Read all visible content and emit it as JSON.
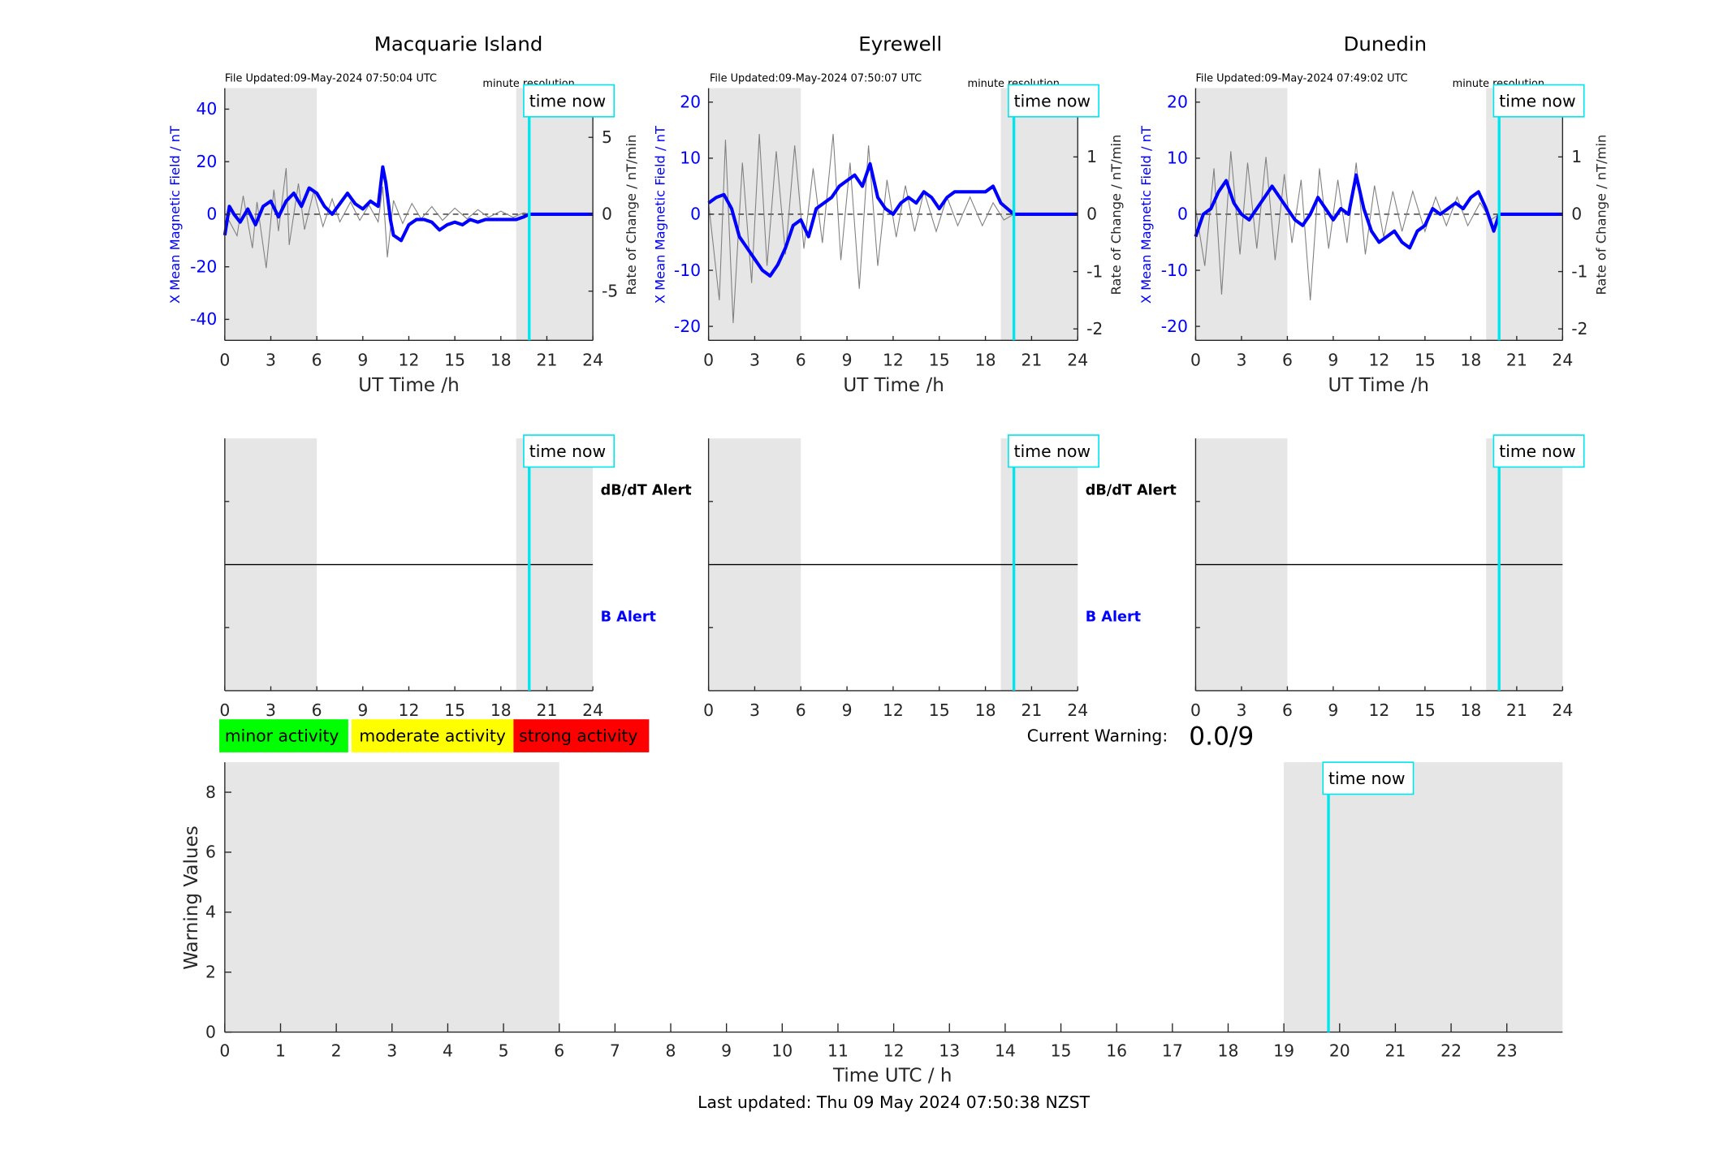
{
  "footer": {
    "last_updated": "Last updated: Thu 09 May 2024 07:50:38 NZST"
  },
  "common": {
    "x_label": "UT Time /h",
    "time_now_label": "time now",
    "y_label_left": "X Mean Magnetic Field / nT",
    "y_label_right": "Rate of Change / nT/min",
    "resolution_label": "minute resolution",
    "dbdt_alert_label": "dB/dT Alert",
    "b_alert_label": "B Alert",
    "current_warning_label": "Current Warning:",
    "current_warning_value": "0.0/9",
    "colors": {
      "field": "#0000ff",
      "rate": "#808080",
      "time_now": "#00e5ee",
      "shade": "#e6e6e6"
    }
  },
  "legend": [
    {
      "label": "minor activity",
      "color": "#00ff00"
    },
    {
      "label": "moderate activity",
      "color": "#ffff00"
    },
    {
      "label": "strong activity",
      "color": "#ff0000"
    }
  ],
  "chart_data": [
    {
      "type": "line",
      "title": "Macquarie Island",
      "file_updated": "File Updated:09-May-2024 07:50:04 UTC",
      "xlabel": "UT Time /h",
      "xlim": [
        0,
        24
      ],
      "xticks": [
        0,
        3,
        6,
        9,
        12,
        15,
        18,
        21,
        24
      ],
      "ylabel": "X Mean Magnetic Field / nT",
      "ylim": [
        -48,
        48
      ],
      "yticks": [
        -40,
        -20,
        0,
        20,
        40
      ],
      "y2label": "Rate of Change / nT/min",
      "y2lim": [
        -8.2,
        8.2
      ],
      "y2ticks": [
        -5,
        0,
        5
      ],
      "night_shading": [
        [
          0,
          6
        ],
        [
          19,
          24
        ]
      ],
      "time_now": 19.85,
      "series": [
        {
          "axis": "left",
          "points": [
            [
              0,
              -8
            ],
            [
              0.3,
              3
            ],
            [
              0.6,
              0
            ],
            [
              1,
              -3
            ],
            [
              1.5,
              2
            ],
            [
              2,
              -4
            ],
            [
              2.5,
              3
            ],
            [
              3,
              5
            ],
            [
              3.5,
              -1
            ],
            [
              4,
              5
            ],
            [
              4.5,
              8
            ],
            [
              5,
              3
            ],
            [
              5.5,
              10
            ],
            [
              6,
              8
            ],
            [
              6.5,
              3
            ],
            [
              7,
              0
            ],
            [
              7.5,
              4
            ],
            [
              8,
              8
            ],
            [
              8.5,
              4
            ],
            [
              9,
              2
            ],
            [
              9.5,
              5
            ],
            [
              10,
              3
            ],
            [
              10.3,
              18
            ],
            [
              10.5,
              12
            ],
            [
              10.8,
              -2
            ],
            [
              11,
              -8
            ],
            [
              11.5,
              -10
            ],
            [
              12,
              -4
            ],
            [
              12.5,
              -2
            ],
            [
              13,
              -2
            ],
            [
              13.5,
              -3
            ],
            [
              14,
              -6
            ],
            [
              14.5,
              -4
            ],
            [
              15,
              -3
            ],
            [
              15.5,
              -4
            ],
            [
              16,
              -2
            ],
            [
              16.5,
              -3
            ],
            [
              17,
              -2
            ],
            [
              17.5,
              -2
            ],
            [
              18,
              -2
            ],
            [
              18.5,
              -2
            ],
            [
              19,
              -2
            ],
            [
              19.5,
              -1
            ],
            [
              19.85,
              0
            ],
            [
              24,
              0
            ]
          ]
        },
        {
          "axis": "right",
          "points": [
            [
              0,
              0.1
            ],
            [
              0.8,
              -1.4
            ],
            [
              1.2,
              1.2
            ],
            [
              1.8,
              -2.2
            ],
            [
              2.1,
              0.8
            ],
            [
              2.7,
              -3.5
            ],
            [
              3.2,
              1.6
            ],
            [
              3.5,
              -1.1
            ],
            [
              4,
              3
            ],
            [
              4.2,
              -2
            ],
            [
              4.8,
              2
            ],
            [
              5.2,
              -1
            ],
            [
              5.8,
              1.5
            ],
            [
              6.4,
              -0.8
            ],
            [
              7,
              1
            ],
            [
              7.5,
              -0.5
            ],
            [
              8.2,
              0.8
            ],
            [
              8.8,
              -0.4
            ],
            [
              9.4,
              0.6
            ],
            [
              10,
              -0.5
            ],
            [
              10.3,
              1.8
            ],
            [
              10.6,
              -2.8
            ],
            [
              11,
              0.9
            ],
            [
              11.6,
              -0.6
            ],
            [
              12.2,
              0.7
            ],
            [
              12.8,
              -0.3
            ],
            [
              13.5,
              0.5
            ],
            [
              14.2,
              -0.4
            ],
            [
              15,
              0.4
            ],
            [
              15.8,
              -0.3
            ],
            [
              16.5,
              0.3
            ],
            [
              17.2,
              -0.2
            ],
            [
              18,
              0.2
            ],
            [
              18.8,
              -0.2
            ],
            [
              19.5,
              0.1
            ],
            [
              19.85,
              0
            ]
          ]
        }
      ]
    },
    {
      "type": "line",
      "title": "Eyrewell",
      "file_updated": "File Updated:09-May-2024 07:50:07 UTC",
      "xlabel": "UT Time /h",
      "xlim": [
        0,
        24
      ],
      "xticks": [
        0,
        3,
        6,
        9,
        12,
        15,
        18,
        21,
        24
      ],
      "ylabel": "X Mean Magnetic Field / nT",
      "ylim": [
        -22.5,
        22.5
      ],
      "yticks": [
        -20,
        -10,
        0,
        10,
        20
      ],
      "y2label": "Rate of Change / nT/min",
      "y2lim": [
        -2.2,
        2.2
      ],
      "y2ticks": [
        -2,
        -1,
        0,
        1,
        2
      ],
      "night_shading": [
        [
          0,
          6
        ],
        [
          19,
          24
        ]
      ],
      "time_now": 19.85,
      "series": [
        {
          "axis": "left",
          "points": [
            [
              0,
              2
            ],
            [
              0.5,
              3
            ],
            [
              1,
              3.5
            ],
            [
              1.5,
              1
            ],
            [
              2,
              -4
            ],
            [
              2.5,
              -6
            ],
            [
              3,
              -8
            ],
            [
              3.5,
              -10
            ],
            [
              4,
              -11
            ],
            [
              4.5,
              -9
            ],
            [
              5,
              -6
            ],
            [
              5.5,
              -2
            ],
            [
              6,
              -1
            ],
            [
              6.5,
              -4
            ],
            [
              7,
              1
            ],
            [
              7.5,
              2
            ],
            [
              8,
              3
            ],
            [
              8.5,
              5
            ],
            [
              9,
              6
            ],
            [
              9.5,
              7
            ],
            [
              10,
              5
            ],
            [
              10.5,
              9
            ],
            [
              11,
              3
            ],
            [
              11.5,
              1
            ],
            [
              12,
              0
            ],
            [
              12.5,
              2
            ],
            [
              13,
              3
            ],
            [
              13.5,
              2
            ],
            [
              14,
              4
            ],
            [
              14.5,
              3
            ],
            [
              15,
              1
            ],
            [
              15.5,
              3
            ],
            [
              16,
              4
            ],
            [
              16.5,
              4
            ],
            [
              17,
              4
            ],
            [
              17.5,
              4
            ],
            [
              18,
              4
            ],
            [
              18.5,
              5
            ],
            [
              19,
              2
            ],
            [
              19.85,
              0
            ],
            [
              24,
              0
            ]
          ]
        },
        {
          "axis": "right",
          "points": [
            [
              0,
              0.2
            ],
            [
              0.7,
              -1.5
            ],
            [
              1.1,
              1.3
            ],
            [
              1.6,
              -1.9
            ],
            [
              2.2,
              0.9
            ],
            [
              2.8,
              -1.2
            ],
            [
              3.3,
              1.4
            ],
            [
              3.8,
              -0.9
            ],
            [
              4.4,
              1.1
            ],
            [
              5,
              -0.7
            ],
            [
              5.6,
              1.2
            ],
            [
              6.2,
              -0.6
            ],
            [
              6.8,
              0.8
            ],
            [
              7.4,
              -0.5
            ],
            [
              8.1,
              1.4
            ],
            [
              8.6,
              -0.8
            ],
            [
              9.2,
              0.9
            ],
            [
              9.8,
              -1.3
            ],
            [
              10.4,
              1.2
            ],
            [
              11,
              -0.9
            ],
            [
              11.6,
              0.6
            ],
            [
              12.2,
              -0.4
            ],
            [
              12.8,
              0.5
            ],
            [
              13.4,
              -0.3
            ],
            [
              14,
              0.4
            ],
            [
              14.8,
              -0.3
            ],
            [
              15.5,
              0.3
            ],
            [
              16.2,
              -0.2
            ],
            [
              17,
              0.3
            ],
            [
              17.8,
              -0.2
            ],
            [
              18.5,
              0.2
            ],
            [
              19.2,
              -0.1
            ],
            [
              19.85,
              0
            ]
          ]
        }
      ]
    },
    {
      "type": "line",
      "title": "Dunedin",
      "file_updated": "File Updated:09-May-2024 07:49:02 UTC",
      "xlabel": "UT Time /h",
      "xlim": [
        0,
        24
      ],
      "xticks": [
        0,
        3,
        6,
        9,
        12,
        15,
        18,
        21,
        24
      ],
      "ylabel": "X Mean Magnetic Field / nT",
      "ylim": [
        -22.5,
        22.5
      ],
      "yticks": [
        -20,
        -10,
        0,
        10,
        20
      ],
      "y2label": "Rate of Change / nT/min",
      "y2lim": [
        -2.2,
        2.2
      ],
      "y2ticks": [
        -2,
        -1,
        0,
        1,
        2
      ],
      "night_shading": [
        [
          0,
          6
        ],
        [
          19,
          24
        ]
      ],
      "time_now": 19.85,
      "series": [
        {
          "axis": "left",
          "points": [
            [
              0,
              -4
            ],
            [
              0.5,
              0
            ],
            [
              1,
              1
            ],
            [
              1.5,
              4
            ],
            [
              2,
              6
            ],
            [
              2.5,
              2
            ],
            [
              3,
              0
            ],
            [
              3.5,
              -1
            ],
            [
              4,
              1
            ],
            [
              4.5,
              3
            ],
            [
              5,
              5
            ],
            [
              5.5,
              3
            ],
            [
              6,
              1
            ],
            [
              6.5,
              -1
            ],
            [
              7,
              -2
            ],
            [
              7.5,
              0
            ],
            [
              8,
              3
            ],
            [
              8.5,
              1
            ],
            [
              9,
              -1
            ],
            [
              9.5,
              1
            ],
            [
              10,
              0
            ],
            [
              10.5,
              7
            ],
            [
              11,
              1
            ],
            [
              11.5,
              -3
            ],
            [
              12,
              -5
            ],
            [
              12.5,
              -4
            ],
            [
              13,
              -3
            ],
            [
              13.5,
              -5
            ],
            [
              14,
              -6
            ],
            [
              14.5,
              -3
            ],
            [
              15,
              -2
            ],
            [
              15.5,
              1
            ],
            [
              16,
              0
            ],
            [
              16.5,
              1
            ],
            [
              17,
              2
            ],
            [
              17.5,
              1
            ],
            [
              18,
              3
            ],
            [
              18.5,
              4
            ],
            [
              19,
              1
            ],
            [
              19.5,
              -3
            ],
            [
              19.85,
              0
            ],
            [
              24,
              0
            ]
          ]
        },
        {
          "axis": "right",
          "points": [
            [
              0,
              0.1
            ],
            [
              0.6,
              -0.9
            ],
            [
              1.2,
              0.8
            ],
            [
              1.7,
              -1.4
            ],
            [
              2.3,
              1.1
            ],
            [
              2.9,
              -0.7
            ],
            [
              3.4,
              0.9
            ],
            [
              4,
              -0.6
            ],
            [
              4.6,
              1
            ],
            [
              5.2,
              -0.8
            ],
            [
              5.8,
              0.7
            ],
            [
              6.3,
              -0.5
            ],
            [
              6.9,
              0.6
            ],
            [
              7.5,
              -1.5
            ],
            [
              8.1,
              0.8
            ],
            [
              8.7,
              -0.6
            ],
            [
              9.3,
              0.6
            ],
            [
              9.9,
              -0.5
            ],
            [
              10.5,
              0.9
            ],
            [
              11.1,
              -0.7
            ],
            [
              11.7,
              0.5
            ],
            [
              12.3,
              -0.4
            ],
            [
              12.9,
              0.4
            ],
            [
              13.5,
              -0.3
            ],
            [
              14.2,
              0.4
            ],
            [
              15,
              -0.3
            ],
            [
              15.7,
              0.3
            ],
            [
              16.4,
              -0.2
            ],
            [
              17.1,
              0.3
            ],
            [
              17.8,
              -0.2
            ],
            [
              18.6,
              0.2
            ],
            [
              19.3,
              -0.1
            ],
            [
              19.85,
              0
            ]
          ]
        }
      ]
    },
    {
      "type": "line",
      "title": "",
      "xlabel": "Time UTC / h",
      "xlim": [
        0,
        24
      ],
      "xticks": [
        0,
        1,
        2,
        3,
        4,
        5,
        6,
        7,
        8,
        9,
        10,
        11,
        12,
        13,
        14,
        15,
        16,
        17,
        18,
        19,
        20,
        21,
        22,
        23
      ],
      "ylabel": "Warning Values",
      "ylim": [
        0,
        9
      ],
      "yticks": [
        0,
        2,
        4,
        6,
        8
      ],
      "night_shading": [
        [
          0,
          6
        ],
        [
          19,
          24
        ]
      ],
      "time_now": 19.8,
      "series": []
    }
  ]
}
